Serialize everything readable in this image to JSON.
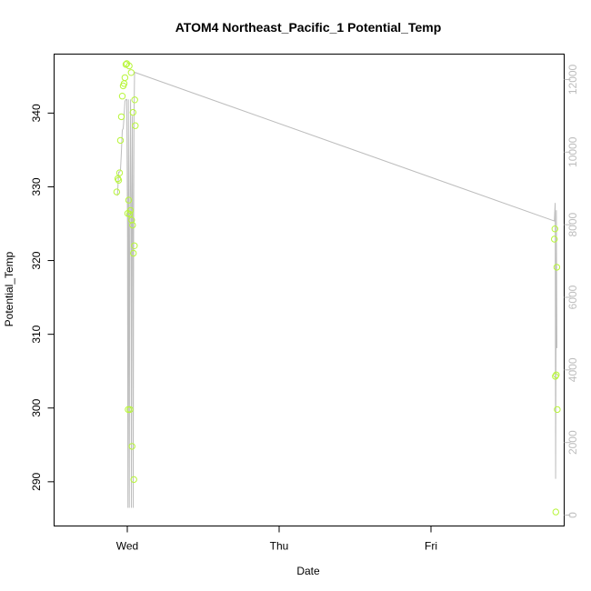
{
  "chart_data": {
    "type": "scatter",
    "title": "ATOM4 Northeast_Pacific_1 Potential_Temp",
    "xlabel": "Date",
    "ylabel": "Potential_Temp",
    "x_ticks": [
      "Wed",
      "Thu",
      "Fri"
    ],
    "ylim": [
      284,
      348
    ],
    "y_ticks": [
      290,
      300,
      310,
      320,
      330,
      340
    ],
    "y2lim": [
      -300,
      12700
    ],
    "y2_ticks": [
      0,
      2000,
      4000,
      6000,
      8000,
      10000,
      12000
    ],
    "grid": false,
    "colors": {
      "points": "#b8f53a",
      "line": "#bdbdbd",
      "axis": "#000000",
      "axis2": "#bdbdbd"
    },
    "series": [
      {
        "type": "scatter",
        "axis": "left",
        "points": [
          {
            "x": "Tue 22:20",
            "y": 329.3
          },
          {
            "x": "Tue 22:30",
            "y": 331.1
          },
          {
            "x": "Tue 22:38",
            "y": 330.9
          },
          {
            "x": "Tue 22:47",
            "y": 331.9
          },
          {
            "x": "Tue 22:55",
            "y": 336.3
          },
          {
            "x": "Tue 23:04",
            "y": 339.5
          },
          {
            "x": "Tue 23:13",
            "y": 342.3
          },
          {
            "x": "Tue 23:21",
            "y": 343.7
          },
          {
            "x": "Tue 23:30",
            "y": 344.0
          },
          {
            "x": "Tue 23:38",
            "y": 344.8
          },
          {
            "x": "Tue 23:47",
            "y": 346.6
          },
          {
            "x": "Tue 23:55",
            "y": 346.7
          },
          {
            "x": "Wed 00:04",
            "y": 326.4
          },
          {
            "x": "Wed 00:09",
            "y": 299.8
          },
          {
            "x": "Wed 00:13",
            "y": 328.2
          },
          {
            "x": "Wed 00:18",
            "y": 346.4
          },
          {
            "x": "Wed 00:22",
            "y": 326.3
          },
          {
            "x": "Wed 00:26",
            "y": 299.8
          },
          {
            "x": "Wed 00:30",
            "y": 326.8
          },
          {
            "x": "Wed 00:37",
            "y": 345.5
          },
          {
            "x": "Wed 00:41",
            "y": 325.5
          },
          {
            "x": "Wed 00:45",
            "y": 294.8
          },
          {
            "x": "Wed 00:50",
            "y": 324.8
          },
          {
            "x": "Wed 00:54",
            "y": 340.1
          },
          {
            "x": "Wed 00:58",
            "y": 321.0
          },
          {
            "x": "Wed 01:02",
            "y": 290.3
          },
          {
            "x": "Wed 01:07",
            "y": 322.0
          },
          {
            "x": "Wed 01:11",
            "y": 341.8
          },
          {
            "x": "Wed 01:16",
            "y": 338.3
          },
          {
            "x": "Fri 19:30",
            "y": 322.9
          },
          {
            "x": "Fri 19:35",
            "y": 324.3
          },
          {
            "x": "Fri 19:40",
            "y": 304.3
          },
          {
            "x": "Fri 19:44",
            "y": 285.9
          },
          {
            "x": "Fri 19:48",
            "y": 304.5
          },
          {
            "x": "Fri 19:53",
            "y": 319.1
          },
          {
            "x": "Fri 19:58",
            "y": 299.8
          }
        ]
      },
      {
        "type": "line",
        "axis": "right",
        "points": [
          {
            "x": "Tue 22:26",
            "y": 8800
          },
          {
            "x": "Tue 22:30",
            "y": 9000
          },
          {
            "x": "Tue 22:38",
            "y": 9450
          },
          {
            "x": "Tue 22:47",
            "y": 9450
          },
          {
            "x": "Tue 22:55",
            "y": 9500
          },
          {
            "x": "Tue 23:04",
            "y": 10000
          },
          {
            "x": "Tue 23:13",
            "y": 10600
          },
          {
            "x": "Tue 23:21",
            "y": 10650
          },
          {
            "x": "Tue 23:30",
            "y": 11000
          },
          {
            "x": "Tue 23:38",
            "y": 11400
          },
          {
            "x": "Tue 23:47",
            "y": 11450
          },
          {
            "x": "Tue 23:55",
            "y": 11450
          },
          {
            "x": "Wed 00:02",
            "y": 8000
          },
          {
            "x": "Wed 00:06",
            "y": 200
          },
          {
            "x": "Wed 00:10",
            "y": 11450
          },
          {
            "x": "Wed 00:14",
            "y": 8000
          },
          {
            "x": "Wed 00:19",
            "y": 200
          },
          {
            "x": "Wed 00:23",
            "y": 8000
          },
          {
            "x": "Wed 00:31",
            "y": 11450
          },
          {
            "x": "Wed 00:35",
            "y": 8000
          },
          {
            "x": "Wed 00:39",
            "y": 200
          },
          {
            "x": "Wed 00:43",
            "y": 8000
          },
          {
            "x": "Wed 00:48",
            "y": 11000
          },
          {
            "x": "Wed 00:52",
            "y": 8000
          },
          {
            "x": "Wed 00:56",
            "y": 200
          },
          {
            "x": "Wed 01:00",
            "y": 8000
          },
          {
            "x": "Wed 01:04",
            "y": 11000
          },
          {
            "x": "Wed 01:09",
            "y": 12200
          },
          {
            "x": "Fri 19:30",
            "y": 8100
          },
          {
            "x": "Fri 19:38",
            "y": 8600
          },
          {
            "x": "Fri 19:42",
            "y": 1000
          },
          {
            "x": "Fri 19:49",
            "y": 8400
          },
          {
            "x": "Fri 19:54",
            "y": 4600
          }
        ]
      }
    ]
  }
}
